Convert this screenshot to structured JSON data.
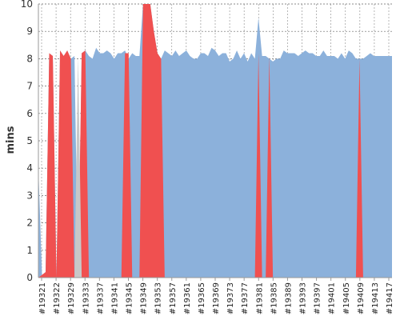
{
  "chart_data": {
    "type": "area",
    "title": "",
    "xlabel": "",
    "ylabel": "mins",
    "ylim": [
      0,
      10
    ],
    "yticks": [
      0,
      1,
      2,
      3,
      4,
      5,
      6,
      7,
      8,
      9,
      10
    ],
    "grid": true,
    "legend": "none",
    "x_tick_labels": [
      "#19321",
      "#19322",
      "#19329",
      "#19333",
      "#19337",
      "#19341",
      "#19345",
      "#19349",
      "#19353",
      "#19357",
      "#19361",
      "#19365",
      "#19369",
      "#19373",
      "#19377",
      "#19381",
      "#19385",
      "#19389",
      "#19393",
      "#19397",
      "#19401",
      "#19405",
      "#19409",
      "#19413",
      "#19417"
    ],
    "series": [
      {
        "color": "#8cb1db",
        "values": [
          4.0,
          0.1,
          0.2,
          8.2,
          8.1,
          0.0,
          8.3,
          8.1,
          8.3,
          8.0,
          8.1,
          0.0,
          8.2,
          8.3,
          8.1,
          8.0,
          8.4,
          8.2,
          8.2,
          8.3,
          8.2,
          8.0,
          8.2,
          8.2,
          8.3,
          8.0,
          8.2,
          8.1,
          8.1,
          10.0,
          10.0,
          10.0,
          9.0,
          8.2,
          8.0,
          8.3,
          8.2,
          8.1,
          8.3,
          8.1,
          8.2,
          8.3,
          8.1,
          8.0,
          8.0,
          8.2,
          8.2,
          8.1,
          8.4,
          8.3,
          8.1,
          8.2,
          8.2,
          7.9,
          8.0,
          8.3,
          8.0,
          8.2,
          7.9,
          8.2,
          8.0,
          9.5,
          8.1,
          8.1,
          8.0,
          7.9,
          8.0,
          8.0,
          8.3,
          8.2,
          8.2,
          8.2,
          8.1,
          8.2,
          8.3,
          8.2,
          8.2,
          8.1,
          8.1,
          8.3,
          8.1,
          8.1,
          8.1,
          8.0,
          8.2,
          8.0,
          8.3,
          8.2,
          8.0,
          8.0,
          8.0,
          8.1,
          8.2,
          8.1,
          8.1,
          8.1,
          8.1,
          8.1,
          8.1
        ]
      },
      {
        "color": "#f05050",
        "values": [
          0,
          0.1,
          0.2,
          8.2,
          8.1,
          0,
          8.3,
          8.1,
          8.3,
          8.0,
          0,
          0,
          8.2,
          8.3,
          0,
          0,
          0,
          0,
          0,
          0,
          0,
          0,
          0,
          0,
          8.2,
          8.2,
          0,
          0,
          0,
          10.0,
          10.0,
          10.0,
          9.0,
          8.2,
          8.0,
          0,
          0,
          0,
          0,
          0,
          0,
          0,
          0,
          0,
          0,
          0,
          0,
          0,
          0,
          0,
          0,
          0,
          0,
          0,
          0,
          0,
          0,
          0,
          0,
          0,
          0,
          8.2,
          0,
          0,
          8.1,
          0,
          0,
          0,
          0,
          0,
          0,
          0,
          0,
          0,
          0,
          0,
          0,
          0,
          0,
          0,
          0,
          0,
          0,
          0,
          0,
          0,
          0,
          0,
          0,
          8.0,
          0,
          0,
          0,
          0,
          0,
          0,
          0,
          0,
          0
        ]
      },
      {
        "color": "#c8c8c8",
        "values": [
          0,
          0,
          0,
          0,
          0,
          0,
          0,
          0,
          0,
          0,
          0,
          8.1,
          0,
          0,
          0,
          0,
          0,
          0,
          0,
          0,
          0,
          0,
          0,
          0,
          0,
          0,
          0,
          0,
          0,
          0,
          0,
          0,
          0,
          0,
          0,
          0,
          0,
          0,
          0,
          0,
          0,
          0,
          0,
          0,
          0,
          0,
          0,
          0,
          0,
          0,
          0,
          0,
          0,
          0,
          0,
          0,
          0,
          0,
          0,
          0,
          0,
          0,
          0,
          0,
          0,
          0,
          0,
          0,
          0,
          0,
          0,
          0,
          0,
          0,
          0,
          0,
          0,
          0,
          0,
          0,
          0,
          0,
          0,
          0,
          0,
          0,
          0,
          0,
          0,
          0,
          0,
          0,
          0,
          0,
          0,
          0,
          0,
          0,
          0
        ]
      }
    ]
  }
}
